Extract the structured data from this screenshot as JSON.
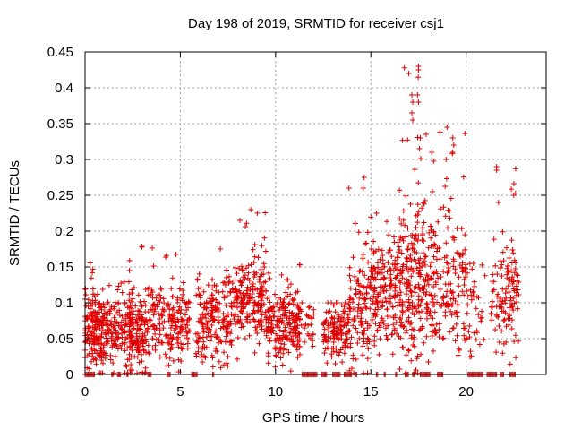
{
  "chart_data": {
    "type": "scatter",
    "title": "Day 198 of 2019, SRMTID for receiver csj1",
    "xlabel": "GPS time / hours",
    "ylabel": "SRMTID / TECUs",
    "xlim": [
      0,
      24.2
    ],
    "ylim": [
      0,
      0.45
    ],
    "x_ticks": [
      0,
      5,
      10,
      15,
      20
    ],
    "x_tick_labels": [
      "0",
      "5",
      "10",
      "15",
      "20"
    ],
    "y_ticks": [
      0,
      0.05,
      0.1,
      0.15,
      0.2,
      0.25,
      0.3,
      0.35,
      0.4,
      0.45
    ],
    "y_tick_labels": [
      "0",
      "0.05",
      "0.1",
      "0.15",
      "0.2",
      "0.25",
      "0.3",
      "0.35",
      "0.4",
      "0.45"
    ],
    "grid": true,
    "marker": "+",
    "point_color": "#e00000",
    "series": [
      {
        "name": "SRMTID",
        "clusters": [
          {
            "x_range": [
              0.0,
              1.0
            ],
            "y_center": 0.06,
            "y_spread": 0.04,
            "y_max": 0.175,
            "count": 180
          },
          {
            "x_range": [
              1.0,
              2.5
            ],
            "y_center": 0.06,
            "y_spread": 0.04,
            "y_max": 0.16,
            "count": 150
          },
          {
            "x_range": [
              2.3,
              3.2
            ],
            "y_center": 0.05,
            "y_spread": 0.04,
            "y_max": 0.185,
            "count": 130
          },
          {
            "x_range": [
              3.2,
              5.5
            ],
            "y_center": 0.07,
            "y_spread": 0.035,
            "y_max": 0.185,
            "count": 200
          },
          {
            "x_range": [
              5.8,
              7.5
            ],
            "y_center": 0.07,
            "y_spread": 0.04,
            "y_max": 0.18,
            "count": 170
          },
          {
            "x_range": [
              7.5,
              9.5
            ],
            "y_center": 0.1,
            "y_spread": 0.04,
            "y_max": 0.23,
            "count": 220
          },
          {
            "x_range": [
              9.5,
              11.3
            ],
            "y_center": 0.07,
            "y_spread": 0.035,
            "y_max": 0.155,
            "count": 220
          },
          {
            "x_range": [
              11.3,
              12.0
            ],
            "y_center": 0.07,
            "y_spread": 0.03,
            "y_max": 0.1,
            "count": 25
          },
          {
            "x_range": [
              12.5,
              13.8
            ],
            "y_center": 0.06,
            "y_spread": 0.03,
            "y_max": 0.1,
            "count": 120
          },
          {
            "x_range": [
              13.8,
              15.0
            ],
            "y_center": 0.09,
            "y_spread": 0.06,
            "y_max": 0.275,
            "count": 120
          },
          {
            "x_range": [
              15.0,
              16.5
            ],
            "y_center": 0.11,
            "y_spread": 0.05,
            "y_max": 0.22,
            "count": 170
          },
          {
            "x_range": [
              16.5,
              17.8
            ],
            "y_center": 0.13,
            "y_spread": 0.08,
            "y_max": 0.43,
            "count": 200
          },
          {
            "x_range": [
              17.8,
              20.0
            ],
            "y_center": 0.13,
            "y_spread": 0.07,
            "y_max": 0.345,
            "count": 210
          },
          {
            "x_range": [
              20.0,
              21.0
            ],
            "y_center": 0.08,
            "y_spread": 0.05,
            "y_max": 0.155,
            "count": 40
          },
          {
            "x_range": [
              21.3,
              22.2
            ],
            "y_center": 0.1,
            "y_spread": 0.06,
            "y_max": 0.29,
            "count": 60
          },
          {
            "x_range": [
              22.2,
              22.8
            ],
            "y_center": 0.11,
            "y_spread": 0.06,
            "y_max": 0.285,
            "count": 60
          }
        ],
        "peaks": [
          {
            "x": 17.15,
            "y": 0.39
          },
          {
            "x": 17.2,
            "y": 0.38
          },
          {
            "x": 17.15,
            "y": 0.365
          },
          {
            "x": 17.5,
            "y": 0.43
          },
          {
            "x": 17.5,
            "y": 0.425
          },
          {
            "x": 17.45,
            "y": 0.39
          },
          {
            "x": 17.5,
            "y": 0.38
          },
          {
            "x": 17.2,
            "y": 0.355
          },
          {
            "x": 17.6,
            "y": 0.33
          },
          {
            "x": 17.55,
            "y": 0.315
          },
          {
            "x": 19.0,
            "y": 0.345
          },
          {
            "x": 19.3,
            "y": 0.33
          },
          {
            "x": 19.35,
            "y": 0.32
          },
          {
            "x": 19.3,
            "y": 0.31
          },
          {
            "x": 18.95,
            "y": 0.3
          },
          {
            "x": 14.65,
            "y": 0.275
          },
          {
            "x": 14.6,
            "y": 0.26
          },
          {
            "x": 13.85,
            "y": 0.26
          },
          {
            "x": 15.3,
            "y": 0.225
          },
          {
            "x": 8.7,
            "y": 0.23
          },
          {
            "x": 21.6,
            "y": 0.29
          },
          {
            "x": 21.6,
            "y": 0.285
          },
          {
            "x": 22.6,
            "y": 0.287
          },
          {
            "x": 21.7,
            "y": 0.24
          },
          {
            "x": 22.5,
            "y": 0.25
          },
          {
            "x": 18.2,
            "y": 0.31
          },
          {
            "x": 17.9,
            "y": 0.335
          }
        ],
        "zero_runs": [
          {
            "x_range": [
              0.0,
              0.5
            ]
          },
          {
            "x_range": [
              1.4,
              1.5
            ]
          },
          {
            "x_range": [
              1.7,
              1.9
            ]
          },
          {
            "x_range": [
              2.2,
              2.3
            ]
          },
          {
            "x_range": [
              3.3,
              3.5
            ]
          },
          {
            "x_range": [
              4.3,
              4.5
            ]
          },
          {
            "x_range": [
              5.6,
              5.9
            ]
          },
          {
            "x_range": [
              6.7,
              6.8
            ]
          },
          {
            "x_range": [
              11.4,
              12.2
            ]
          },
          {
            "x_range": [
              12.4,
              12.7
            ]
          },
          {
            "x_range": [
              13.0,
              13.4
            ]
          },
          {
            "x_range": [
              13.6,
              14.0
            ]
          },
          {
            "x_range": [
              14.2,
              14.3
            ]
          },
          {
            "x_range": [
              15.3,
              15.4
            ]
          },
          {
            "x_range": [
              15.7,
              15.8
            ]
          },
          {
            "x_range": [
              16.3,
              16.4
            ]
          },
          {
            "x_range": [
              16.8,
              17.0
            ]
          },
          {
            "x_range": [
              17.2,
              17.3
            ]
          },
          {
            "x_range": [
              17.6,
              18.1
            ]
          },
          {
            "x_range": [
              18.5,
              18.8
            ]
          },
          {
            "x_range": [
              20.1,
              20.9
            ]
          },
          {
            "x_range": [
              21.1,
              21.6
            ]
          },
          {
            "x_range": [
              21.8,
              22.0
            ]
          },
          {
            "x_range": [
              22.3,
              22.6
            ]
          }
        ]
      }
    ]
  }
}
